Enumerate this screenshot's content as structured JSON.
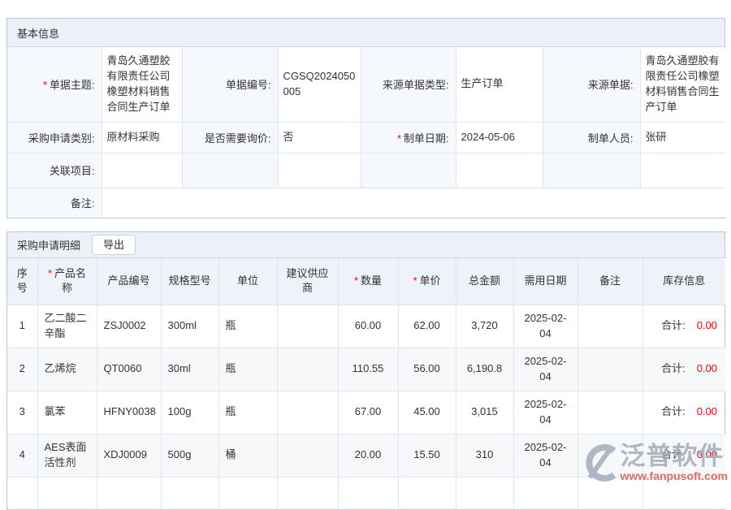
{
  "colors": {
    "required_asterisk": "#ff0000",
    "stock_value_red": "#ff0000",
    "header_bar_bg": "#ecf1f8",
    "label_cell_bg": "#f5f8fc",
    "border_blue": "#dce5f0",
    "watermark_gray": "#a7aebc",
    "watermark_red": "#e1584e"
  },
  "basic_info": {
    "title": "基本信息",
    "rows": [
      [
        {
          "label": "单据主题:",
          "required": true,
          "value": "青岛久通塑胶有限责任公司橡塑材料销售合同生产订单"
        },
        {
          "label": "单据编号:",
          "value": "CGSQ2024050005"
        },
        {
          "label": "来源单据类型:",
          "value": "生产订单"
        },
        {
          "label": "来源单据:",
          "value": "青岛久通塑胶有限责任公司橡塑材料销售合同生产订单"
        }
      ],
      [
        {
          "label": "采购申请类别:",
          "value": "原材料采购"
        },
        {
          "label": "是否需要询价:",
          "value": "否"
        },
        {
          "label": "制单日期:",
          "required": true,
          "value": "2024-05-06"
        },
        {
          "label": "制单人员:",
          "value": "张研"
        }
      ],
      [
        {
          "label": "关联项目:",
          "value": ""
        },
        {
          "label": "",
          "value": ""
        },
        {
          "label": "",
          "value": ""
        },
        {
          "label": "",
          "value": ""
        }
      ],
      [
        {
          "label": "备注:",
          "value": "",
          "span": 7
        }
      ]
    ]
  },
  "detail": {
    "title": "采购申请明细",
    "export_label": "导出",
    "total_label": "合计:",
    "columns": [
      {
        "key": "no",
        "label": "序号"
      },
      {
        "key": "name",
        "label": "产品名称",
        "required": true
      },
      {
        "key": "code",
        "label": "产品编号"
      },
      {
        "key": "spec",
        "label": "规格型号"
      },
      {
        "key": "unit",
        "label": "单位"
      },
      {
        "key": "supplier",
        "label": "建议供应商"
      },
      {
        "key": "qty",
        "label": "数量",
        "required": true
      },
      {
        "key": "price",
        "label": "单价",
        "required": true
      },
      {
        "key": "amount",
        "label": "总金额"
      },
      {
        "key": "date",
        "label": "需用日期"
      },
      {
        "key": "remark",
        "label": "备注"
      },
      {
        "key": "stock",
        "label": "库存信息"
      }
    ],
    "rows": [
      {
        "no": "1",
        "name": "乙二酸二辛酯",
        "code": "ZSJ0002",
        "spec": "300ml",
        "unit": "瓶",
        "supplier": "",
        "qty": "60.00",
        "price": "62.00",
        "amount": "3,720",
        "date": "2025-02-04",
        "remark": "",
        "stock": "0.00"
      },
      {
        "no": "2",
        "name": "乙烯烷",
        "code": "QT0060",
        "spec": "30ml",
        "unit": "瓶",
        "supplier": "",
        "qty": "110.55",
        "price": "56.00",
        "amount": "6,190.8",
        "date": "2025-02-04",
        "remark": "",
        "stock": "0.00"
      },
      {
        "no": "3",
        "name": "氯苯",
        "code": "HFNY0038",
        "spec": "100g",
        "unit": "瓶",
        "supplier": "",
        "qty": "67.00",
        "price": "45.00",
        "amount": "3,015",
        "date": "2025-02-04",
        "remark": "",
        "stock": "0.00"
      },
      {
        "no": "4",
        "name": "AES表面活性剂",
        "code": "XDJ0009",
        "spec": "500g",
        "unit": "桶",
        "supplier": "",
        "qty": "20.00",
        "price": "15.50",
        "amount": "310",
        "date": "2025-02-04",
        "remark": "",
        "stock": "0.00"
      }
    ]
  },
  "watermark": {
    "brand": "泛普软件",
    "url": "www.fanpusoft.com"
  }
}
